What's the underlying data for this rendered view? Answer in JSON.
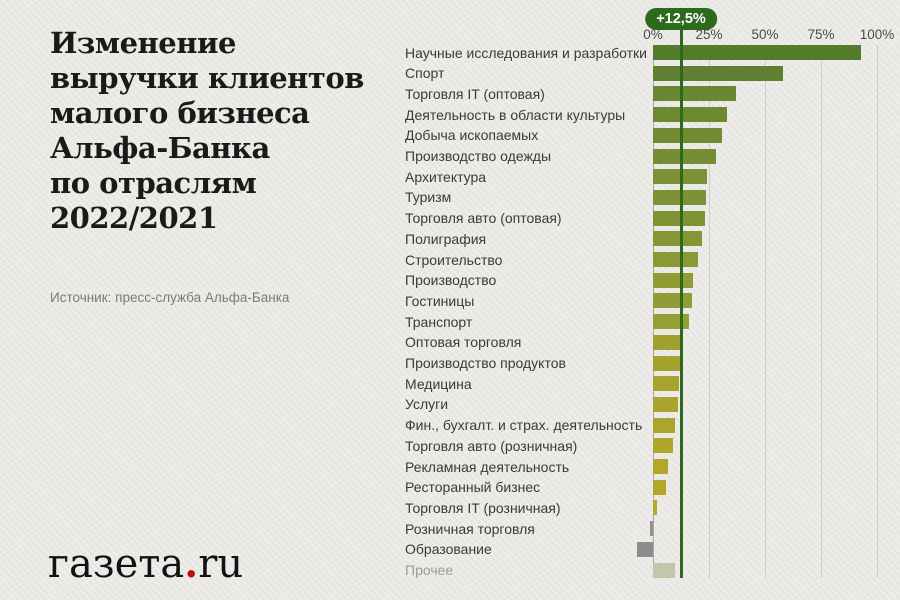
{
  "header": {
    "title_lines": [
      "Изменение",
      "выручки клиентов",
      "малого бизнеса",
      "Альфа-Банка",
      "по отраслям",
      "2022/2021"
    ],
    "source": "Источник: пресс-служба Альфа-Банка"
  },
  "logo": {
    "part1": "газета",
    "dot": ".",
    "part2": "ru",
    "dot_color": "#c40a0a"
  },
  "colors": {
    "background": "#e9e8e4",
    "title_text": "#1a1a19",
    "source_text": "#7c7b78",
    "axis_text": "#4c4b48",
    "gridline": "#cfcec9",
    "zero_line": "#a8a7a2",
    "average_green": "#2d6a1e",
    "negative_gray": "#8c8c8c",
    "other_sage": "#c4c6ac"
  },
  "chart_data": {
    "type": "bar",
    "orientation": "horizontal",
    "unit": "%",
    "title": "Изменение выручки клиентов малого бизнеса Альфа-Банка по отраслям 2022/2021",
    "source": "Источник: пресс-служба Альфа-Банка",
    "average": {
      "value": 12.5,
      "label": "+12,5%"
    },
    "axis": {
      "ticks": [
        0,
        25,
        50,
        75,
        100
      ],
      "tick_labels": [
        "0%",
        "25%",
        "50%",
        "75%",
        "100%"
      ],
      "range": [
        -8,
        100
      ],
      "grid": true
    },
    "rows": [
      {
        "label": "Научные исследования и разработки",
        "value": 93,
        "color": "#547a2c",
        "muted": false
      },
      {
        "label": "Спорт",
        "value": 58,
        "color": "#5e8030",
        "muted": false
      },
      {
        "label": "Торговля IT (оптовая)",
        "value": 37,
        "color": "#688732",
        "muted": false
      },
      {
        "label": "Деятельность в области культуры",
        "value": 33,
        "color": "#6d8932",
        "muted": false
      },
      {
        "label": "Добыча ископаемых",
        "value": 31,
        "color": "#718b33",
        "muted": false
      },
      {
        "label": "Производство одежды",
        "value": 28,
        "color": "#758d33",
        "muted": false
      },
      {
        "label": "Архитектура",
        "value": 24,
        "color": "#7b9134",
        "muted": false
      },
      {
        "label": "Туризм",
        "value": 23.5,
        "color": "#7d9234",
        "muted": false
      },
      {
        "label": "Торговля авто (оптовая)",
        "value": 23,
        "color": "#7f9334",
        "muted": false
      },
      {
        "label": "Полиграфия",
        "value": 22,
        "color": "#859635",
        "muted": false
      },
      {
        "label": "Строительство",
        "value": 20,
        "color": "#8b9935",
        "muted": false
      },
      {
        "label": "Производство",
        "value": 18,
        "color": "#909b34",
        "muted": false
      },
      {
        "label": "Гостиницы",
        "value": 17.5,
        "color": "#929c34",
        "muted": false
      },
      {
        "label": "Транспорт",
        "value": 16,
        "color": "#979e33",
        "muted": false
      },
      {
        "label": "Оптовая торговля",
        "value": 12.5,
        "color": "#a1a130",
        "muted": false
      },
      {
        "label": "Производство продуктов",
        "value": 12,
        "color": "#a4a22f",
        "muted": false
      },
      {
        "label": "Медицина",
        "value": 11.5,
        "color": "#a6a32f",
        "muted": false
      },
      {
        "label": "Услуги",
        "value": 11,
        "color": "#a8a42e",
        "muted": false
      },
      {
        "label": "Фин., бухгалт. и страх. деятельность",
        "value": 10,
        "color": "#aca52d",
        "muted": false
      },
      {
        "label": "Торговля авто (розничная)",
        "value": 9,
        "color": "#afa62c",
        "muted": false
      },
      {
        "label": "Рекламная деятельность",
        "value": 6.5,
        "color": "#b2a72b",
        "muted": false
      },
      {
        "label": "Ресторанный бизнес",
        "value": 6,
        "color": "#b3a72b",
        "muted": false
      },
      {
        "label": "Торговля IT (розничная)",
        "value": 2,
        "color": "#b5a82a",
        "muted": false
      },
      {
        "label": "Розничная торговля",
        "value": -1.5,
        "color": "#919191",
        "muted": false
      },
      {
        "label": "Образование",
        "value": -7,
        "color": "#8c8c8c",
        "muted": false
      },
      {
        "label": "Прочее",
        "value": 10,
        "color": "#c4c6ac",
        "muted": true
      }
    ]
  }
}
